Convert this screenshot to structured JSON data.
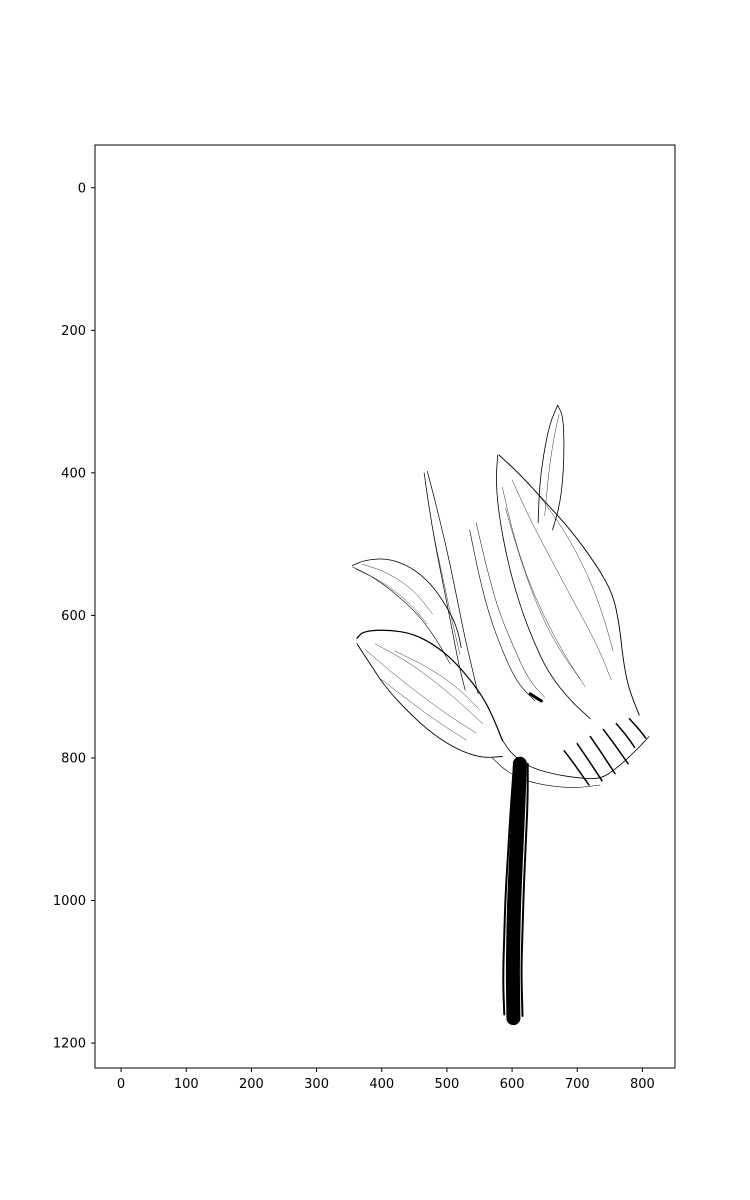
{
  "chart_data": {
    "type": "line",
    "title": "",
    "xlabel": "",
    "ylabel": "",
    "xlim": [
      -40,
      850
    ],
    "ylim": [
      1235,
      -60
    ],
    "y_inverted": true,
    "grid": false,
    "legend": "none",
    "x_ticks": [
      0,
      100,
      200,
      300,
      400,
      500,
      600,
      700,
      800
    ],
    "x_tick_labels": [
      "0",
      "100",
      "200",
      "300",
      "400",
      "500",
      "600",
      "700",
      "800"
    ],
    "y_ticks": [
      0,
      200,
      400,
      600,
      800,
      1000,
      1200
    ],
    "y_tick_labels": [
      "0",
      "200",
      "400",
      "600",
      "800",
      "1000",
      "1200"
    ],
    "line_color": "#000000",
    "strokes": [
      {
        "name": "petal-left-upper-outline",
        "width": 0.8,
        "points": [
          [
            355,
            530
          ],
          [
            375,
            522
          ],
          [
            410,
            520
          ],
          [
            445,
            532
          ],
          [
            475,
            555
          ],
          [
            498,
            585
          ],
          [
            515,
            615
          ],
          [
            522,
            645
          ]
        ]
      },
      {
        "name": "petal-left-upper-lower-edge",
        "width": 0.6,
        "points": [
          [
            355,
            532
          ],
          [
            385,
            545
          ],
          [
            425,
            572
          ],
          [
            462,
            605
          ],
          [
            488,
            640
          ],
          [
            505,
            668
          ]
        ]
      },
      {
        "name": "petal-left-upper-hatch-1",
        "width": 0.4,
        "points": [
          [
            370,
            528
          ],
          [
            410,
            540
          ],
          [
            450,
            565
          ],
          [
            478,
            598
          ]
        ]
      },
      {
        "name": "petal-left-upper-hatch-2",
        "width": 0.4,
        "points": [
          [
            360,
            535
          ],
          [
            400,
            552
          ],
          [
            440,
            580
          ],
          [
            470,
            612
          ]
        ]
      },
      {
        "name": "petal-lower-outline",
        "width": 1.2,
        "points": [
          [
            362,
            632
          ],
          [
            372,
            622
          ],
          [
            410,
            620
          ],
          [
            450,
            626
          ],
          [
            487,
            645
          ],
          [
            515,
            668
          ],
          [
            540,
            695
          ],
          [
            560,
            722
          ],
          [
            575,
            752
          ],
          [
            585,
            775
          ]
        ]
      },
      {
        "name": "petal-lower-bottom-edge",
        "width": 0.9,
        "points": [
          [
            362,
            640
          ],
          [
            380,
            665
          ],
          [
            405,
            700
          ],
          [
            440,
            735
          ],
          [
            480,
            768
          ],
          [
            520,
            790
          ],
          [
            555,
            800
          ],
          [
            585,
            798
          ]
        ]
      },
      {
        "name": "petal-lower-hatch-1",
        "width": 0.4,
        "points": [
          [
            375,
            648
          ],
          [
            415,
            680
          ],
          [
            460,
            712
          ],
          [
            505,
            742
          ],
          [
            545,
            765
          ]
        ]
      },
      {
        "name": "petal-lower-hatch-2",
        "width": 0.4,
        "points": [
          [
            390,
            640
          ],
          [
            435,
            662
          ],
          [
            478,
            690
          ],
          [
            520,
            722
          ],
          [
            555,
            752
          ]
        ]
      },
      {
        "name": "petal-lower-hatch-3",
        "width": 0.4,
        "points": [
          [
            400,
            690
          ],
          [
            445,
            722
          ],
          [
            490,
            752
          ],
          [
            530,
            775
          ]
        ]
      },
      {
        "name": "petal-lower-hatch-4",
        "width": 0.4,
        "points": [
          [
            420,
            650
          ],
          [
            470,
            672
          ],
          [
            515,
            700
          ],
          [
            550,
            732
          ]
        ]
      },
      {
        "name": "petal-narrow-left-edge",
        "width": 0.7,
        "points": [
          [
            465,
            400
          ],
          [
            472,
            445
          ],
          [
            482,
            500
          ],
          [
            495,
            560
          ],
          [
            508,
            620
          ],
          [
            518,
            668
          ],
          [
            528,
            705
          ]
        ]
      },
      {
        "name": "petal-narrow-right-edge",
        "width": 0.7,
        "points": [
          [
            470,
            398
          ],
          [
            482,
            440
          ],
          [
            498,
            500
          ],
          [
            512,
            560
          ],
          [
            525,
            620
          ],
          [
            538,
            672
          ],
          [
            548,
            710
          ]
        ]
      },
      {
        "name": "petal-narrow-hatch",
        "width": 0.4,
        "points": [
          [
            468,
            420
          ],
          [
            478,
            480
          ],
          [
            492,
            540
          ],
          [
            506,
            600
          ],
          [
            520,
            655
          ]
        ]
      },
      {
        "name": "petal-center-left-edge",
        "width": 0.8,
        "points": [
          [
            578,
            375
          ],
          [
            575,
            410
          ],
          [
            580,
            460
          ],
          [
            592,
            520
          ],
          [
            610,
            580
          ],
          [
            630,
            630
          ],
          [
            655,
            680
          ],
          [
            690,
            720
          ],
          [
            720,
            745
          ]
        ]
      },
      {
        "name": "petal-center-right-edge",
        "width": 0.9,
        "points": [
          [
            580,
            375
          ],
          [
            610,
            400
          ],
          [
            650,
            440
          ],
          [
            690,
            480
          ],
          [
            730,
            530
          ],
          [
            755,
            570
          ],
          [
            765,
            615
          ],
          [
            770,
            660
          ],
          [
            778,
            700
          ],
          [
            795,
            740
          ]
        ]
      },
      {
        "name": "petal-center-hatch-1",
        "width": 0.4,
        "points": [
          [
            585,
            420
          ],
          [
            600,
            480
          ],
          [
            620,
            540
          ],
          [
            648,
            600
          ],
          [
            680,
            655
          ],
          [
            712,
            700
          ]
        ]
      },
      {
        "name": "petal-center-hatch-2",
        "width": 0.4,
        "points": [
          [
            600,
            410
          ],
          [
            630,
            470
          ],
          [
            665,
            530
          ],
          [
            700,
            590
          ],
          [
            730,
            640
          ],
          [
            752,
            690
          ]
        ]
      },
      {
        "name": "petal-center-hatch-3",
        "width": 0.4,
        "points": [
          [
            590,
            450
          ],
          [
            612,
            520
          ],
          [
            640,
            590
          ],
          [
            670,
            645
          ],
          [
            705,
            690
          ]
        ]
      },
      {
        "name": "petal-center-hatch-4",
        "width": 0.4,
        "points": [
          [
            640,
            430
          ],
          [
            680,
            480
          ],
          [
            715,
            540
          ],
          [
            740,
            600
          ],
          [
            755,
            650
          ]
        ]
      },
      {
        "name": "petal-top-tip-left",
        "width": 0.8,
        "points": [
          [
            640,
            470
          ],
          [
            642,
            420
          ],
          [
            648,
            375
          ],
          [
            658,
            330
          ],
          [
            670,
            305
          ]
        ]
      },
      {
        "name": "petal-top-tip-right",
        "width": 0.8,
        "points": [
          [
            670,
            305
          ],
          [
            678,
            320
          ],
          [
            680,
            360
          ],
          [
            678,
            410
          ],
          [
            672,
            450
          ],
          [
            662,
            480
          ]
        ]
      },
      {
        "name": "petal-top-tip-inner",
        "width": 0.4,
        "points": [
          [
            650,
            460
          ],
          [
            655,
            410
          ],
          [
            662,
            360
          ],
          [
            672,
            318
          ]
        ]
      },
      {
        "name": "center-petal-left-side",
        "width": 0.6,
        "points": [
          [
            535,
            480
          ],
          [
            548,
            540
          ],
          [
            565,
            600
          ],
          [
            585,
            650
          ],
          [
            608,
            695
          ],
          [
            635,
            720
          ]
        ]
      },
      {
        "name": "center-petal-left-side-2",
        "width": 0.5,
        "points": [
          [
            545,
            470
          ],
          [
            560,
            530
          ],
          [
            578,
            590
          ],
          [
            600,
            640
          ],
          [
            625,
            690
          ],
          [
            650,
            715
          ]
        ]
      },
      {
        "name": "flower-base-curve",
        "width": 0.8,
        "points": [
          [
            585,
            775
          ],
          [
            600,
            795
          ],
          [
            625,
            812
          ],
          [
            660,
            822
          ],
          [
            700,
            828
          ],
          [
            735,
            830
          ],
          [
            760,
            815
          ],
          [
            790,
            790
          ],
          [
            810,
            770
          ]
        ]
      },
      {
        "name": "flower-base-lower",
        "width": 0.6,
        "points": [
          [
            570,
            800
          ],
          [
            590,
            818
          ],
          [
            620,
            832
          ],
          [
            660,
            840
          ],
          [
            700,
            842
          ],
          [
            735,
            838
          ]
        ]
      },
      {
        "name": "receptacle-hatch-1",
        "width": 1.5,
        "points": [
          [
            700,
            780
          ],
          [
            715,
            800
          ],
          [
            728,
            818
          ],
          [
            738,
            832
          ]
        ]
      },
      {
        "name": "receptacle-hatch-2",
        "width": 1.5,
        "points": [
          [
            720,
            770
          ],
          [
            735,
            790
          ],
          [
            748,
            808
          ],
          [
            758,
            822
          ]
        ]
      },
      {
        "name": "receptacle-hatch-3",
        "width": 1.5,
        "points": [
          [
            740,
            760
          ],
          [
            755,
            778
          ],
          [
            768,
            795
          ],
          [
            778,
            808
          ]
        ]
      },
      {
        "name": "receptacle-hatch-4",
        "width": 1.5,
        "points": [
          [
            760,
            752
          ],
          [
            775,
            768
          ],
          [
            788,
            785
          ]
        ]
      },
      {
        "name": "receptacle-hatch-5",
        "width": 1.5,
        "points": [
          [
            680,
            790
          ],
          [
            695,
            808
          ],
          [
            708,
            825
          ],
          [
            718,
            838
          ]
        ]
      },
      {
        "name": "receptacle-hatch-6",
        "width": 1.5,
        "points": [
          [
            780,
            745
          ],
          [
            795,
            760
          ],
          [
            805,
            772
          ]
        ]
      },
      {
        "name": "small-dark-mark",
        "width": 3,
        "points": [
          [
            628,
            710
          ],
          [
            636,
            715
          ],
          [
            645,
            720
          ]
        ]
      },
      {
        "name": "stem-core",
        "width": 14,
        "points": [
          [
            612,
            808
          ],
          [
            610,
            860
          ],
          [
            607,
            920
          ],
          [
            604,
            980
          ],
          [
            602,
            1040
          ],
          [
            601,
            1100
          ],
          [
            602,
            1165
          ]
        ]
      },
      {
        "name": "stem-left-edge",
        "width": 2,
        "points": [
          [
            603,
            810
          ],
          [
            598,
            870
          ],
          [
            594,
            930
          ],
          [
            590,
            990
          ],
          [
            588,
            1050
          ],
          [
            586,
            1110
          ],
          [
            588,
            1160
          ]
        ]
      },
      {
        "name": "stem-right-edge",
        "width": 2,
        "points": [
          [
            624,
            808
          ],
          [
            624,
            860
          ],
          [
            621,
            920
          ],
          [
            618,
            980
          ],
          [
            616,
            1040
          ],
          [
            614,
            1100
          ],
          [
            616,
            1162
          ]
        ]
      },
      {
        "name": "stem-strand-1",
        "width": 1,
        "points": [
          [
            618,
            815
          ],
          [
            614,
            900
          ],
          [
            610,
            990
          ],
          [
            608,
            1080
          ],
          [
            607,
            1170
          ]
        ]
      },
      {
        "name": "stem-strand-2",
        "width": 1,
        "points": [
          [
            606,
            812
          ],
          [
            602,
            900
          ],
          [
            598,
            990
          ],
          [
            596,
            1080
          ],
          [
            597,
            1168
          ]
        ]
      }
    ]
  }
}
